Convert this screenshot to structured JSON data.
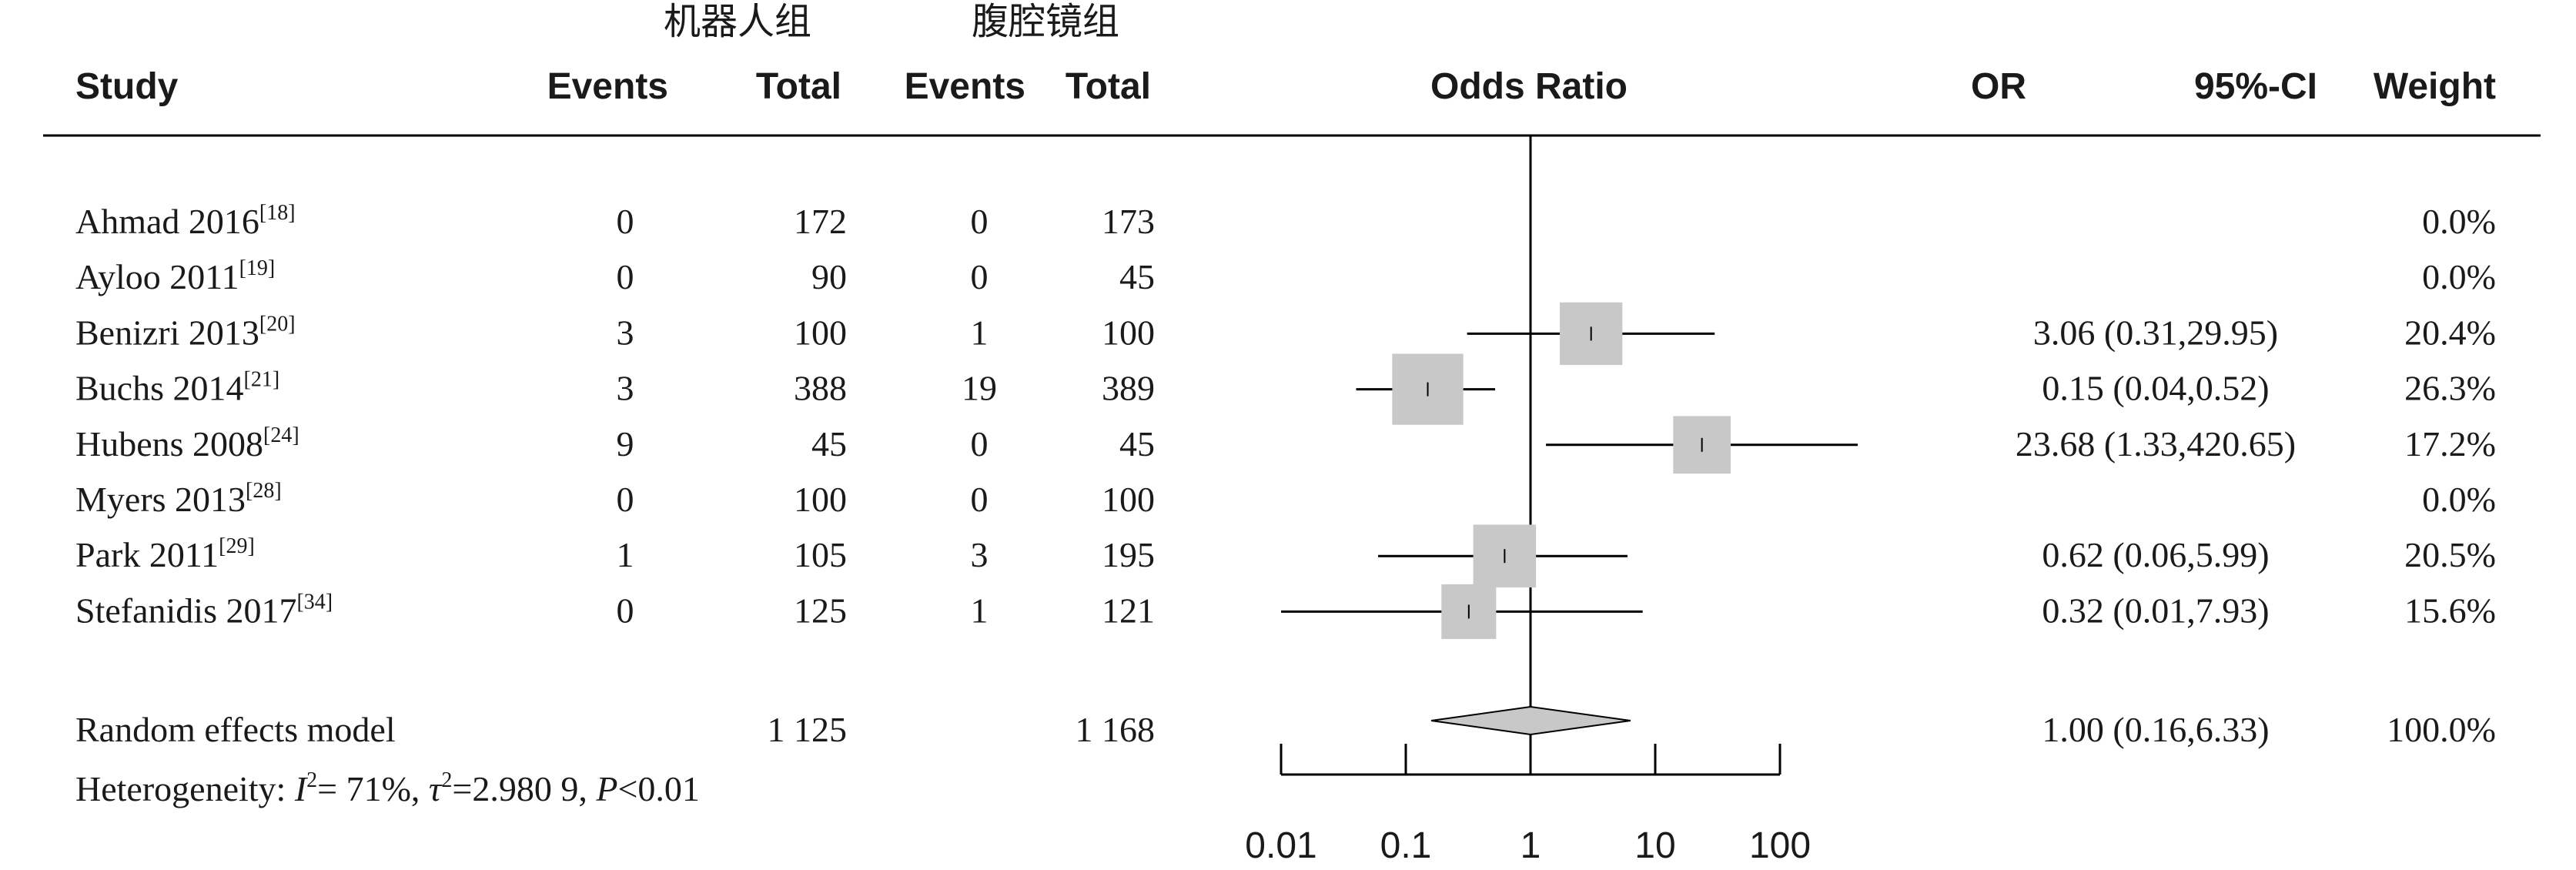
{
  "chart_data": {
    "type": "forest",
    "group_headers": {
      "robot": "机器人组",
      "laparoscopy": "腹腔镜组"
    },
    "column_headers": {
      "study": "Study",
      "events1": "Events",
      "total1": "Total",
      "events2": "Events",
      "total2": "Total",
      "plot": "Odds Ratio",
      "or": "OR",
      "ci": "95%-CI",
      "weight": "Weight"
    },
    "studies": [
      {
        "name": "Ahmad 2016",
        "ref": "[18]",
        "events1": "0",
        "total1": "172",
        "events2": "0",
        "total2": "173",
        "or": null,
        "ci_low": null,
        "ci_high": null,
        "or_text": "",
        "weight": "0.0%",
        "weight_value": 0
      },
      {
        "name": "Ayloo 2011",
        "ref": "[19]",
        "events1": "0",
        "total1": "90",
        "events2": "0",
        "total2": "45",
        "or": null,
        "ci_low": null,
        "ci_high": null,
        "or_text": "",
        "weight": "0.0%",
        "weight_value": 0
      },
      {
        "name": "Benizri 2013",
        "ref": "[20]",
        "events1": "3",
        "total1": "100",
        "events2": "1",
        "total2": "100",
        "or": 3.06,
        "ci_low": 0.31,
        "ci_high": 29.95,
        "or_text": "3.06 (0.31,29.95)",
        "weight": "20.4%",
        "weight_value": 20.4
      },
      {
        "name": "Buchs 2014",
        "ref": "[21]",
        "events1": "3",
        "total1": "388",
        "events2": "19",
        "total2": "389",
        "or": 0.15,
        "ci_low": 0.04,
        "ci_high": 0.52,
        "or_text": "0.15 (0.04,0.52)",
        "weight": "26.3%",
        "weight_value": 26.3
      },
      {
        "name": "Hubens 2008",
        "ref": "[24]",
        "events1": "9",
        "total1": "45",
        "events2": "0",
        "total2": "45",
        "or": 23.68,
        "ci_low": 1.33,
        "ci_high": 420.65,
        "or_text": "23.68 (1.33,420.65)",
        "weight": "17.2%",
        "weight_value": 17.2
      },
      {
        "name": "Myers 2013",
        "ref": "[28]",
        "events1": "0",
        "total1": "100",
        "events2": "0",
        "total2": "100",
        "or": null,
        "ci_low": null,
        "ci_high": null,
        "or_text": "",
        "weight": "0.0%",
        "weight_value": 0
      },
      {
        "name": "Park 2011",
        "ref": "[29]",
        "events1": "1",
        "total1": "105",
        "events2": "3",
        "total2": "195",
        "or": 0.62,
        "ci_low": 0.06,
        "ci_high": 5.99,
        "or_text": "0.62 (0.06,5.99)",
        "weight": "20.5%",
        "weight_value": 20.5
      },
      {
        "name": "Stefanidis 2017",
        "ref": "[34]",
        "events1": "0",
        "total1": "125",
        "events2": "1",
        "total2": "121",
        "or": 0.32,
        "ci_low": 0.01,
        "ci_high": 7.93,
        "or_text": "0.32 (0.01,7.93)",
        "weight": "15.6%",
        "weight_value": 15.6
      }
    ],
    "summary": {
      "name": "Random effects model",
      "total1": "1 125",
      "total2": "1 168",
      "or": 1.0,
      "ci_low": 0.16,
      "ci_high": 6.33,
      "or_text": "1.00 (0.16,6.33)",
      "weight": "100.0%"
    },
    "heterogeneity": {
      "label": "Heterogeneity: ",
      "i2_symbol": "I",
      "i2_value": "= 71%, ",
      "tau2_symbol": "τ",
      "tau2_value": "=2.980 9, ",
      "p_symbol": "P",
      "p_value": "<0.01"
    },
    "x_axis": {
      "scale": "log",
      "range": [
        0.01,
        100
      ],
      "ticks": [
        0.01,
        0.1,
        1,
        10,
        100
      ],
      "tick_labels": [
        "0.01",
        "0.1",
        "1",
        "10",
        "100"
      ],
      "reference_line": 1
    },
    "colors": {
      "square": "#c8c8c8",
      "diamond": "#c8c8c8",
      "line": "#000000",
      "text": "#1a1a1a"
    }
  }
}
